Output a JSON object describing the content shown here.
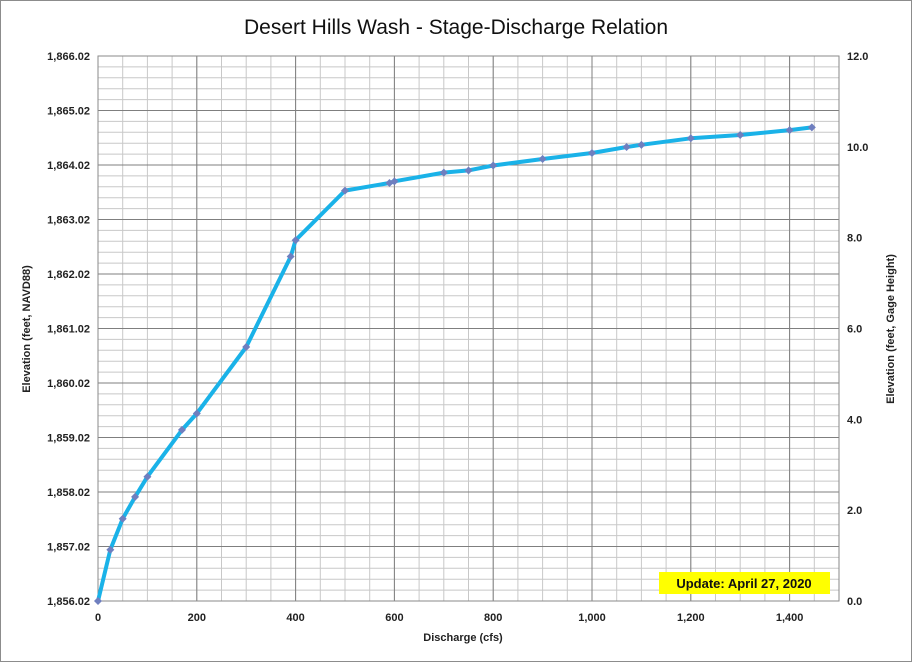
{
  "chart_data": {
    "type": "line",
    "title": "Desert Hills Wash - Stage-Discharge Relation",
    "xlabel": "Discharge  (cfs)",
    "ylabel": "Elevation  (feet, NAVD88)",
    "y2label": "Elevation  (feet, Gage  Height)",
    "annotation": "Update: April 27, 2020",
    "xlim": [
      0,
      1500
    ],
    "ylim": [
      1856.02,
      1866.02
    ],
    "y2lim": [
      0,
      12
    ],
    "x_ticks": [
      0,
      200,
      400,
      600,
      800,
      1000,
      1200,
      1400
    ],
    "x_tick_labels": [
      "0",
      "200",
      "400",
      "600",
      "800",
      "1,000",
      "1,200",
      "1,400"
    ],
    "y_ticks": [
      1856.02,
      1857.02,
      1858.02,
      1859.02,
      1860.02,
      1861.02,
      1862.02,
      1863.02,
      1864.02,
      1865.02,
      1866.02
    ],
    "y_tick_labels": [
      "1,856.02",
      "1,857.02",
      "1,858.02",
      "1,859.02",
      "1,860.02",
      "1,861.02",
      "1,862.02",
      "1,863.02",
      "1,864.02",
      "1,865.02",
      "1,866.02"
    ],
    "y2_ticks": [
      0,
      2,
      4,
      6,
      8,
      10,
      12
    ],
    "y2_tick_labels": [
      "0.0",
      "2.0",
      "4.0",
      "6.0",
      "8.0",
      "10.0",
      "12.0"
    ],
    "grid": true,
    "line_color": "#1ab2e8",
    "marker_color": "#6f7fbf",
    "annotation_bg": "#ffff00",
    "x": [
      0,
      25,
      50,
      75,
      100,
      170,
      200,
      300,
      390,
      400,
      500,
      590,
      600,
      700,
      750,
      800,
      900,
      1000,
      1070,
      1100,
      1200,
      1300,
      1400,
      1445
    ],
    "y": [
      1856.02,
      1856.96,
      1857.53,
      1857.93,
      1858.3,
      1859.16,
      1859.46,
      1860.68,
      1862.34,
      1862.64,
      1863.55,
      1863.69,
      1863.72,
      1863.88,
      1863.92,
      1864.01,
      1864.13,
      1864.24,
      1864.35,
      1864.39,
      1864.51,
      1864.57,
      1864.66,
      1864.71
    ]
  }
}
